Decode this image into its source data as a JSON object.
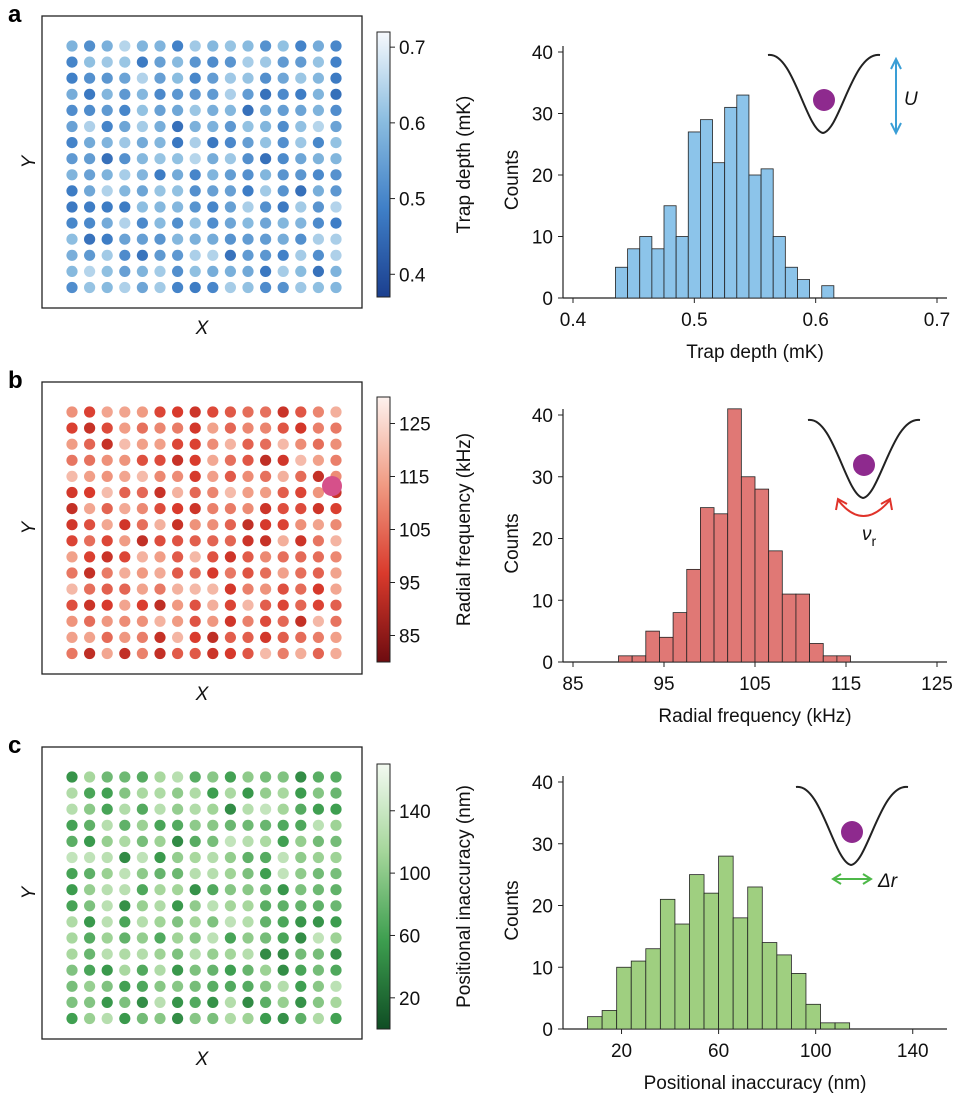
{
  "panels": [
    {
      "label": "a",
      "grid": {
        "xlabel": "X",
        "ylabel": "Y"
      },
      "colorbar": {
        "label": "Trap depth (mK)",
        "ticks": [
          "0.4",
          "0.5",
          "0.6",
          "0.7"
        ],
        "range": [
          0.37,
          0.72
        ],
        "colors": [
          "#1b3f8f",
          "#3f7fc7",
          "#8bbde0",
          "#f6f9fd"
        ]
      },
      "inset": {
        "label": "U",
        "label_sub": "",
        "arrow": "vertical",
        "color": "#3a9ed6"
      }
    },
    {
      "label": "b",
      "grid": {
        "xlabel": "X",
        "ylabel": "Y"
      },
      "colorbar": {
        "label": "Radial frequency (kHz)",
        "ticks": [
          "85",
          "95",
          "105",
          "115",
          "125"
        ],
        "range": [
          80,
          130
        ],
        "colors": [
          "#6e0c10",
          "#d93a2c",
          "#f09a82",
          "#fdf2ee"
        ]
      },
      "inset": {
        "label": "ν",
        "label_sub": "r",
        "arrow": "curved",
        "color": "#e0332a"
      }
    },
    {
      "label": "c",
      "grid": {
        "xlabel": "X",
        "ylabel": "Y"
      },
      "colorbar": {
        "label": "Positional inaccuracy (nm)",
        "ticks": [
          "20",
          "60",
          "100",
          "140"
        ],
        "range": [
          0,
          170
        ],
        "colors": [
          "#0f4d24",
          "#3d9e4f",
          "#a4d69a",
          "#f3faf1"
        ]
      },
      "inset": {
        "label": "Δr",
        "label_sub": "",
        "arrow": "horizontal",
        "color": "#4db848"
      }
    }
  ],
  "chart_data": [
    {
      "type": "bar",
      "xlabel": "Trap depth (mK)",
      "ylabel": "Counts",
      "xlim": [
        0.4,
        0.7
      ],
      "ylim": [
        0,
        40
      ],
      "xticks": [
        "0.4",
        "0.5",
        "0.6",
        "0.7"
      ],
      "yticks": [
        "0",
        "10",
        "20",
        "30",
        "40"
      ],
      "bin_start": 0.435,
      "bin_width": 0.01,
      "values": [
        5,
        8,
        10,
        8,
        15,
        10,
        27,
        29,
        22,
        31,
        33,
        20,
        21,
        10,
        5,
        3,
        0,
        2
      ],
      "color": "#8cc4ea"
    },
    {
      "type": "bar",
      "xlabel": "Radial frequency (kHz)",
      "ylabel": "Counts",
      "xlim": [
        85,
        125
      ],
      "ylim": [
        0,
        40
      ],
      "xticks": [
        "85",
        "95",
        "105",
        "115",
        "125"
      ],
      "yticks": [
        "0",
        "10",
        "20",
        "30",
        "40"
      ],
      "bin_start": 90,
      "bin_width": 1.5,
      "values": [
        1,
        1,
        5,
        4,
        8,
        15,
        25,
        24,
        41,
        30,
        28,
        18,
        11,
        11,
        3,
        1,
        1
      ],
      "color": "#e07875"
    },
    {
      "type": "bar",
      "xlabel": "Positional inaccuracy (nm)",
      "ylabel": "Counts",
      "xlim": [
        0,
        150
      ],
      "ylim": [
        0,
        40
      ],
      "xticks": [
        "20",
        "60",
        "100",
        "140"
      ],
      "yticks": [
        "0",
        "10",
        "20",
        "30",
        "40"
      ],
      "bin_start": 6,
      "bin_width": 6,
      "values": [
        2,
        3,
        10,
        11,
        13,
        21,
        17,
        25,
        22,
        28,
        18,
        23,
        14,
        12,
        9,
        4,
        1,
        1
      ],
      "color": "#9fcf80"
    }
  ]
}
